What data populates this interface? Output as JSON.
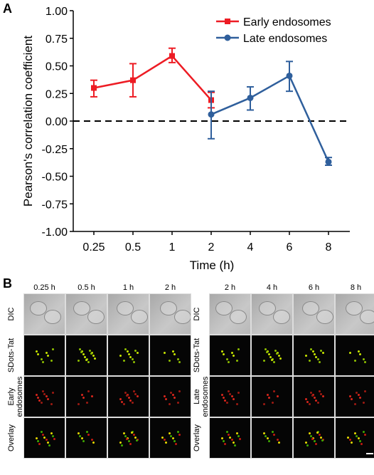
{
  "panel_a_label": "A",
  "panel_b_label": "B",
  "chart_data": {
    "type": "line",
    "xlabel": "Time (h)",
    "ylabel": "Pearson's correlation coefficient",
    "categories": [
      "0.25",
      "0.5",
      "1",
      "2",
      "4",
      "6",
      "8"
    ],
    "ylim": [
      -1.0,
      1.0
    ],
    "yticks": [
      "1.00",
      "0.75",
      "0.50",
      "0.25",
      "0.00",
      "-0.25",
      "-0.50",
      "-0.75",
      "-1.00"
    ],
    "ytick_values": [
      1.0,
      0.75,
      0.5,
      0.25,
      0.0,
      -0.25,
      -0.5,
      -0.75,
      -1.0
    ],
    "reference_line": {
      "y": 0,
      "style": "dashed"
    },
    "legend_position": "top-right",
    "series": [
      {
        "name": "Early endosomes",
        "color": "#ed1c24",
        "marker": "square",
        "x": [
          "0.25",
          "0.5",
          "1",
          "2"
        ],
        "values": [
          0.3,
          0.37,
          0.59,
          0.19
        ],
        "err_low": [
          0.22,
          0.22,
          0.53,
          0.12
        ],
        "err_high": [
          0.37,
          0.52,
          0.66,
          0.26
        ]
      },
      {
        "name": "Late endosomes",
        "color": "#2f5f9c",
        "marker": "circle",
        "x": [
          "2",
          "4",
          "6",
          "8"
        ],
        "values": [
          0.06,
          0.21,
          0.41,
          -0.37
        ],
        "err_low": [
          -0.16,
          0.1,
          0.27,
          -0.4
        ],
        "err_high": [
          0.27,
          0.31,
          0.54,
          -0.33
        ]
      }
    ]
  },
  "microscopy": {
    "left": {
      "columns": [
        "0.25 h",
        "0.5 h",
        "1 h",
        "2 h"
      ],
      "rows": [
        "DIC",
        "SDots-Tat",
        "Early\nendosomes",
        "Overlay"
      ]
    },
    "right": {
      "columns": [
        "2 h",
        "4 h",
        "6 h",
        "8 h"
      ],
      "rows": [
        "DIC",
        "SDots-Tat",
        "Late\nendosomes",
        "Overlay"
      ]
    }
  }
}
